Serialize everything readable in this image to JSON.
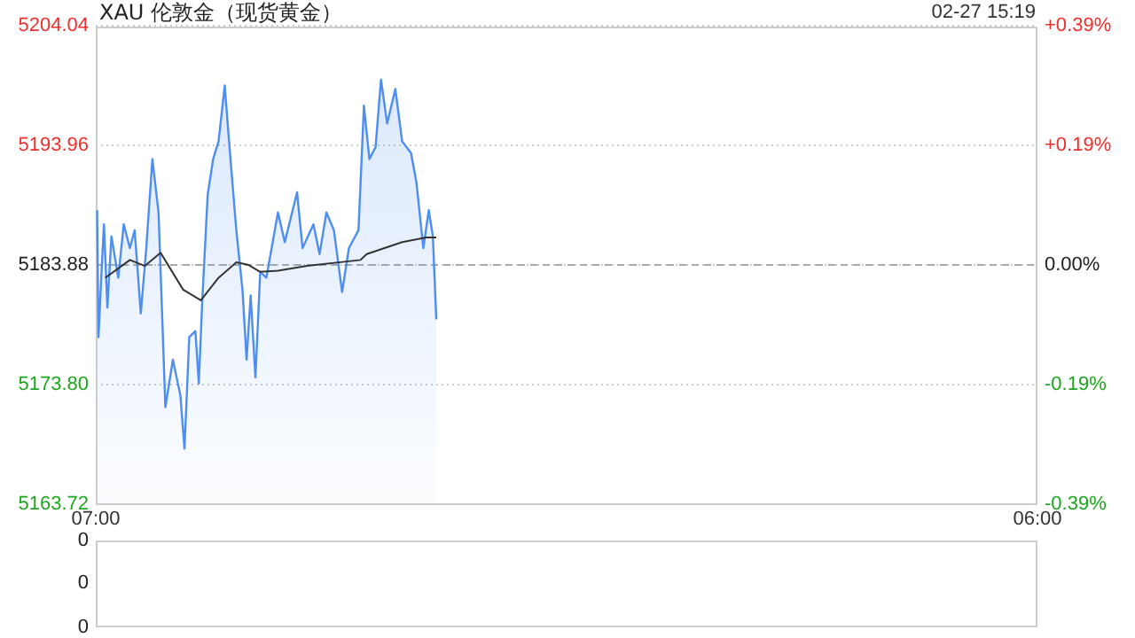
{
  "chart_data": [
    {
      "type": "area",
      "title": "XAU 伦敦金（现货黄金）",
      "annotations": [
        "02-27 15:19"
      ],
      "xlim": [
        "--02-27T07:00",
        "--02-28T06:00"
      ],
      "xticks": [
        {
          "value": "--02-27T07:00",
          "label": "07:00"
        },
        {
          "value": "--02-28T06:00",
          "label": "06:00"
        }
      ],
      "ylim": [
        5163.72,
        5204.04
      ],
      "yticks": [
        5163.72,
        {
          "value": 5173.8,
          "label": "5173.80"
        },
        5183.88,
        5193.96,
        5204.04
      ],
      "y2lim": [
        -0.3889,
        0.3889
      ],
      "y2ticks": [
        {
          "value": -0.3889,
          "label": "-0.39%"
        },
        {
          "value": -0.1944,
          "label": "-0.19%"
        },
        {
          "value": 0,
          "label": "0.00%"
        },
        {
          "value": 0.1944,
          "label": "+0.19%"
        },
        {
          "value": 0.3889,
          "label": "+0.39%"
        }
      ],
      "grid": "y",
      "ref_lines": [
        {
          "axis": "y",
          "value": 5183.88,
          "line_style": "dashed",
          "color": "#aaaaaa"
        }
      ],
      "series": [
        {
          "color": "#4d8ef0",
          "x": [
            "--02-27T07:02",
            "--02-27T07:04",
            "--02-27T07:08",
            "--02-27T07:12",
            "--02-27T07:17",
            "--02-27T07:23",
            "--02-27T07:33",
            "--02-27T07:41",
            "--02-27T07:50",
            "--02-27T07:57",
            "--02-27T08:06",
            "--02-27T08:14",
            "--02-27T08:23",
            "--02-27T08:32",
            "--02-27T08:42",
            "--02-27T08:53",
            "--02-27T09:04",
            "--02-27T09:10",
            "--02-27T09:17",
            "--02-27T09:26",
            "--02-27T09:31",
            "--02-27T09:36",
            "--02-27T09:44",
            "--02-27T09:52",
            "--02-27T10:00",
            "--02-27T10:09",
            "--02-27T10:16",
            "--02-27T10:26",
            "--02-27T10:35",
            "--02-27T10:41",
            "--02-27T10:47",
            "--02-27T10:54",
            "--02-27T11:01",
            "--02-27T11:10",
            "--02-27T11:27",
            "--02-27T11:37",
            "--02-27T11:55",
            "--02-27T12:03",
            "--02-27T12:19",
            "--02-27T12:28",
            "--02-27T12:38",
            "--02-27T12:49",
            "--02-27T13:01",
            "--02-27T13:11",
            "--02-27T13:25",
            "--02-27T13:33",
            "--02-27T13:41",
            "--02-27T13:50",
            "--02-27T13:58",
            "--02-27T14:07",
            "--02-27T14:19",
            "--02-27T14:29",
            "--02-27T14:42",
            "--02-27T14:50",
            "--02-27T15:00",
            "--02-27T15:08",
            "--02-27T15:14",
            "--02-27T15:19"
          ],
          "values": [
            5188.5,
            5177.8,
            5182.8,
            5187.3,
            5180.3,
            5186.3,
            5182.8,
            5187.3,
            5185.3,
            5186.8,
            5179.8,
            5185.3,
            5192.8,
            5188.3,
            5171.9,
            5175.9,
            5172.9,
            5168.4,
            5177.8,
            5178.3,
            5173.9,
            5180.8,
            5189.8,
            5192.8,
            5194.3,
            5199,
            5193.8,
            5186.8,
            5181.8,
            5175.9,
            5181.3,
            5174.4,
            5183.3,
            5182.8,
            5188.3,
            5185.8,
            5190,
            5185.3,
            5187.3,
            5184.8,
            5188.3,
            5186.8,
            5181.6,
            5185.3,
            5186.8,
            5197.3,
            5192.8,
            5193.8,
            5199.5,
            5195.8,
            5198.7,
            5194.3,
            5193.3,
            5190.8,
            5185.3,
            5188.5,
            5186.3,
            5179.3
          ]
        },
        {
          "type": "line",
          "color": "#333333",
          "x": [
            "--02-27T07:14",
            "--02-27T07:50",
            "--02-27T08:12",
            "--02-27T08:35",
            "--02-27T09:08",
            "--02-27T09:34",
            "--02-27T10:00",
            "--02-27T10:26",
            "--02-27T10:43",
            "--02-27T11:01",
            "--02-27T11:27",
            "--02-27T12:10",
            "--02-27T13:28",
            "--02-27T13:37",
            "--02-27T14:29",
            "--02-27T15:04",
            "--02-27T15:19"
          ],
          "values": [
            5182.8,
            5184.3,
            5183.8,
            5184.9,
            5181.8,
            5180.9,
            5182.8,
            5184.1,
            5183.9,
            5183.3,
            5183.4,
            5183.8,
            5184.3,
            5184.8,
            5185.8,
            5186.2,
            5186.2
          ]
        }
      ]
    },
    {
      "type": "other",
      "annotations": [
        "0",
        "0",
        "0"
      ]
    }
  ]
}
